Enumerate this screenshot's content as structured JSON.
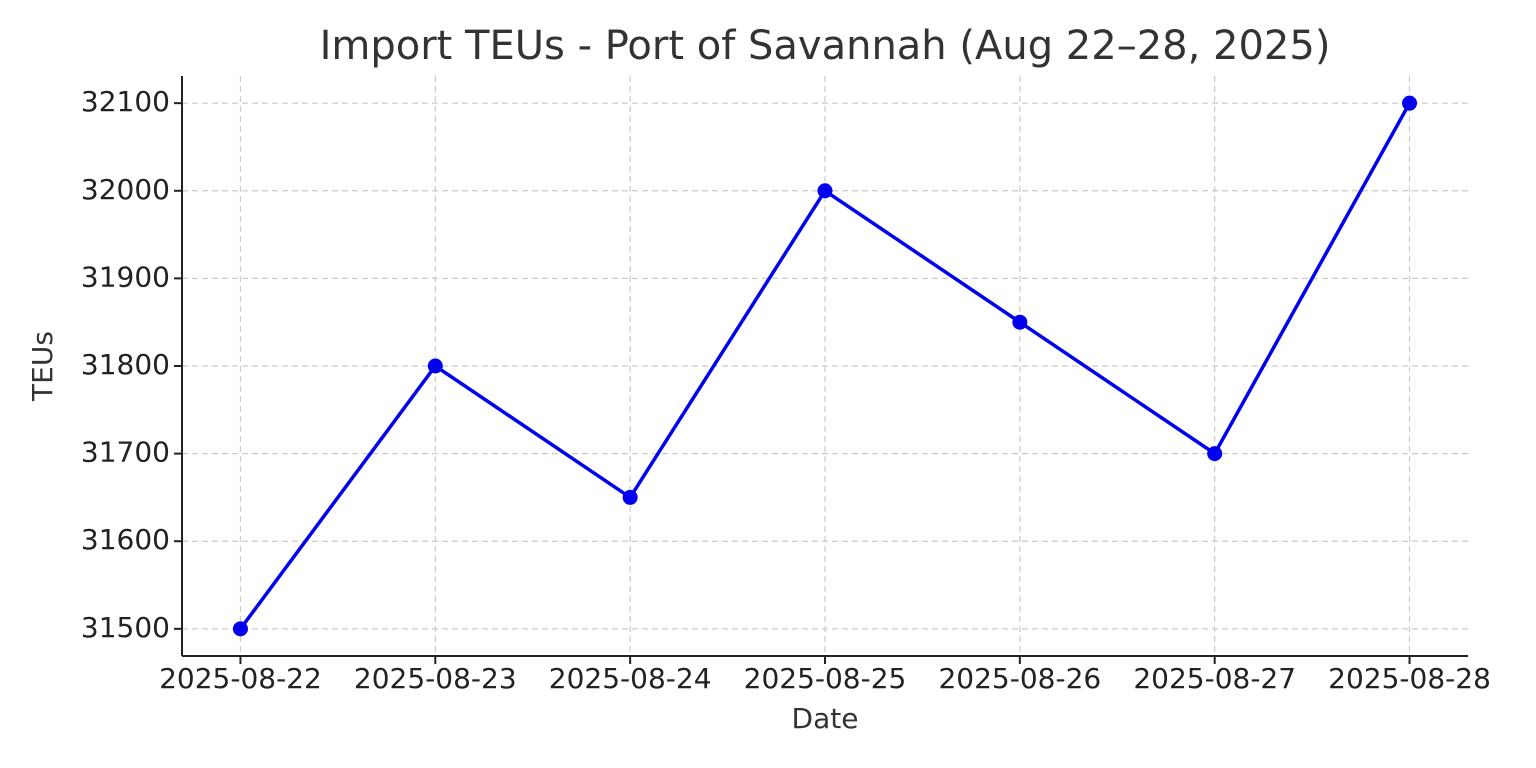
{
  "chart_data": {
    "type": "line",
    "title": "Import TEUs - Port of Savannah (Aug 22–28, 2025)",
    "x_label": "Date",
    "y_label": "TEUs",
    "x": [
      "2025-08-22",
      "2025-08-23",
      "2025-08-24",
      "2025-08-25",
      "2025-08-26",
      "2025-08-27",
      "2025-08-28"
    ],
    "values": [
      31500,
      31800,
      31650,
      32000,
      31850,
      31700,
      32100
    ],
    "color": "#0000ee",
    "ylim": [
      31469,
      32131
    ],
    "yticks": [
      31500,
      31600,
      31700,
      31800,
      31900,
      32000,
      32100
    ],
    "grid": true
  }
}
